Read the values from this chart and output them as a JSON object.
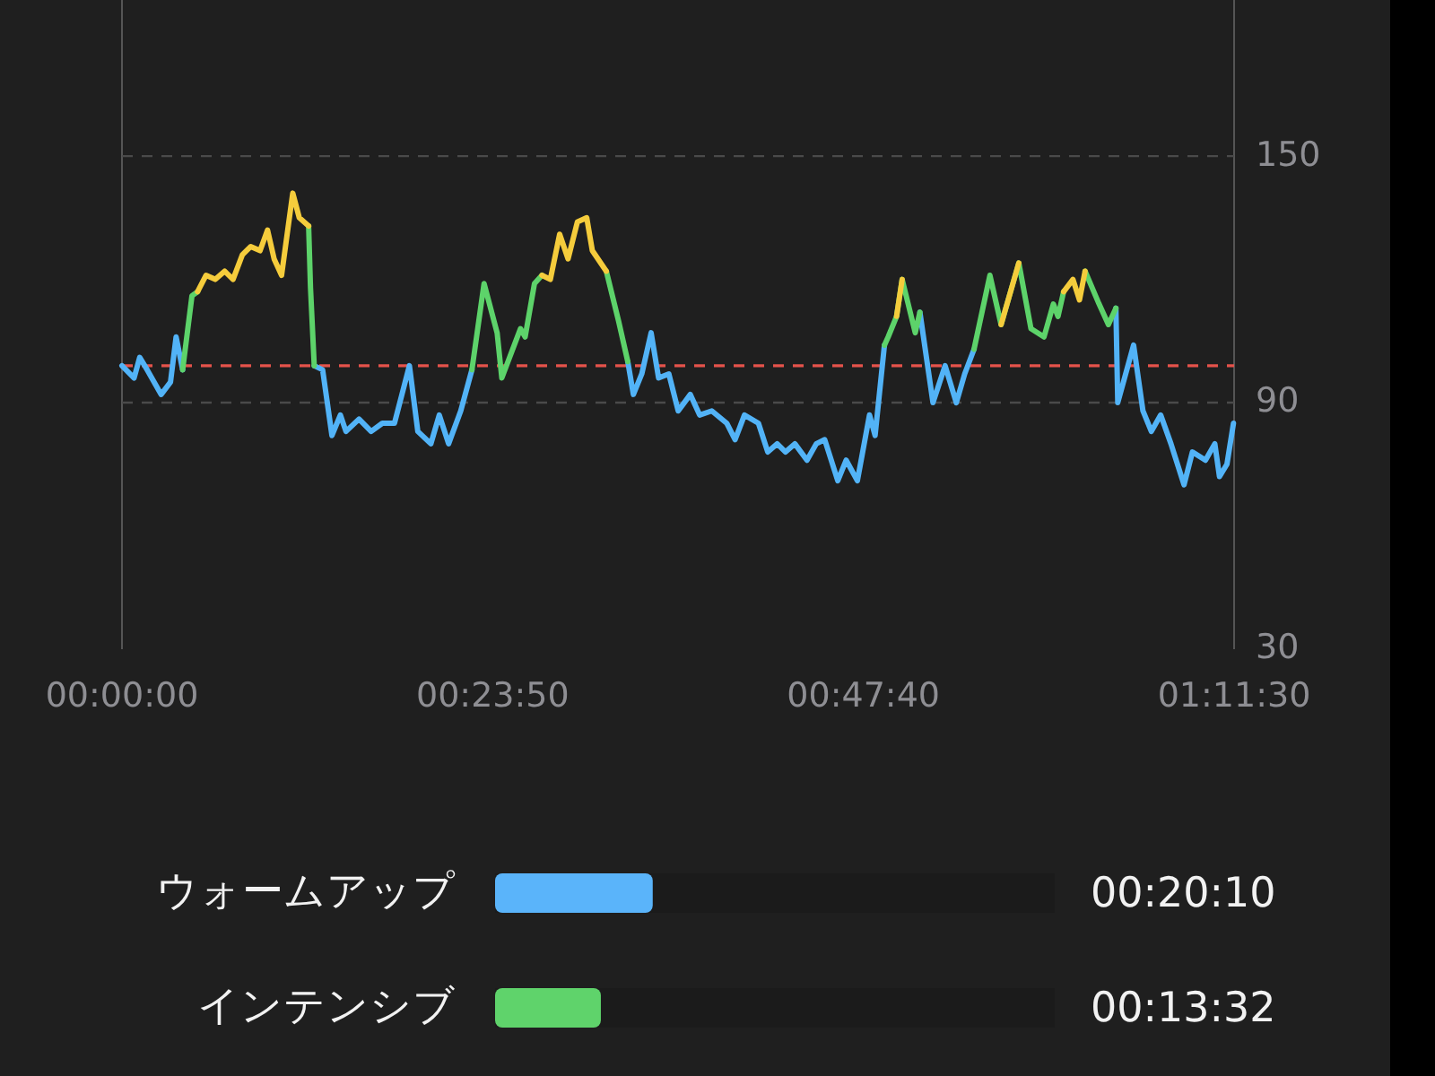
{
  "chart_data": [
    {
      "type": "line",
      "x": [
        0,
        0.013,
        0.019,
        0.027,
        0.042,
        0.052,
        0.058,
        0.065,
        0.075,
        0.081,
        0.09,
        0.1,
        0.11,
        0.119,
        0.129,
        0.138,
        0.148,
        0.156,
        0.163,
        0.171,
        0.177,
        0.183,
        0.19,
        0.2,
        0.202,
        0.206,
        0.215,
        0.225,
        0.234,
        0.24,
        0.254,
        0.267,
        0.279,
        0.292,
        0.308,
        0.317,
        0.331,
        0.34,
        0.35,
        0.363,
        0.375,
        0.388,
        0.402,
        0.407,
        0.427,
        0.432,
        0.442,
        0.45,
        0.459,
        0.469,
        0.478,
        0.488,
        0.498,
        0.504,
        0.519,
        0.532,
        0.542,
        0.548,
        0.557,
        0.567,
        0.575,
        0.586,
        0.596,
        0.609,
        0.619,
        0.632,
        0.648,
        0.657,
        0.667,
        0.682,
        0.692,
        0.702,
        0.711,
        0.721,
        0.734,
        0.744,
        0.753,
        0.767,
        0.776,
        0.788,
        0.801,
        0.807,
        0.817,
        0.821,
        0.83,
        0.836,
        0.85,
        0.855,
        0.869,
        0.882,
        0.894,
        0.903,
        0.913,
        0.93,
        0.942,
        0.961,
        0.974,
        0.988,
        0.998,
        1.003,
        1.009,
        1.019,
        1.026,
        1.032,
        1.047,
        1.057,
        1.065,
        1.067,
        1.084,
        1.094,
        1.103,
        1.113,
        1.124,
        1.138,
        1.147,
        1.161,
        1.171,
        1.176,
        1.184,
        1.191
      ],
      "series": [
        {
          "color": "#52b3f7",
          "values": [
            99,
            96,
            101,
            98,
            92,
            95,
            106,
            98,
            null,
            null,
            null,
            null,
            null,
            null,
            null,
            null,
            null,
            null,
            null,
            null,
            null,
            null,
            null,
            null,
            null,
            99,
            98,
            82,
            87,
            83,
            86,
            83,
            85,
            85,
            99,
            83,
            80,
            87,
            80,
            88,
            98,
            null,
            null,
            null,
            null,
            null,
            null,
            null,
            null,
            null,
            null,
            null,
            null,
            null,
            null,
            null,
            100,
            92,
            97,
            107,
            96,
            97,
            88,
            92,
            87,
            88,
            85,
            81,
            87,
            85,
            78,
            80,
            78,
            80,
            76,
            80,
            81,
            71,
            76,
            71,
            87,
            82,
            104,
            null,
            null,
            null,
            null,
            112,
            90,
            99,
            90,
            97,
            103,
            null,
            null,
            null,
            null,
            null,
            null,
            null,
            null,
            null,
            null,
            null,
            null,
            null,
            113,
            90,
            104,
            88,
            83,
            87,
            80,
            70,
            78,
            76,
            80,
            72,
            75,
            85
          ]
        },
        {
          "color": "#5dd36a",
          "values": [
            null,
            null,
            null,
            null,
            null,
            null,
            null,
            98,
            116,
            117,
            null,
            null,
            null,
            null,
            null,
            null,
            null,
            null,
            null,
            null,
            null,
            null,
            null,
            133,
            118,
            99,
            null,
            null,
            null,
            null,
            null,
            null,
            null,
            null,
            null,
            null,
            null,
            null,
            null,
            null,
            98,
            119,
            107,
            96,
            108,
            106,
            119,
            121,
            null,
            null,
            null,
            null,
            null,
            null,
            122,
            110,
            100,
            null,
            null,
            null,
            null,
            null,
            null,
            null,
            null,
            null,
            null,
            null,
            null,
            null,
            null,
            null,
            null,
            null,
            null,
            null,
            null,
            null,
            null,
            null,
            null,
            null,
            104,
            106,
            111,
            120,
            107,
            112,
            null,
            null,
            null,
            null,
            103,
            121,
            109,
            124,
            108,
            106,
            114,
            111,
            117,
            null,
            null,
            122,
            114,
            109,
            113,
            null,
            null,
            null,
            null,
            null,
            null,
            null,
            null,
            null,
            null,
            null,
            null,
            null
          ]
        },
        {
          "color": "#f5cc3c",
          "values": [
            null,
            null,
            null,
            null,
            null,
            null,
            null,
            null,
            null,
            117,
            121,
            120,
            122,
            120,
            126,
            128,
            127,
            132,
            125,
            121,
            131,
            141,
            135,
            133,
            null,
            null,
            null,
            null,
            null,
            null,
            null,
            null,
            null,
            null,
            null,
            null,
            null,
            null,
            null,
            null,
            null,
            null,
            null,
            null,
            null,
            null,
            null,
            121,
            120,
            131,
            125,
            134,
            135,
            127,
            122,
            null,
            null,
            null,
            null,
            null,
            null,
            null,
            null,
            null,
            null,
            null,
            null,
            null,
            null,
            null,
            null,
            null,
            null,
            null,
            null,
            null,
            null,
            null,
            null,
            null,
            null,
            null,
            null,
            null,
            111,
            120,
            null,
            null,
            null,
            null,
            null,
            null,
            null,
            null,
            109,
            124,
            null,
            null,
            null,
            null,
            117,
            120,
            115,
            122,
            null,
            null,
            null,
            null,
            null,
            null,
            null,
            null,
            null,
            null,
            null,
            null,
            null,
            null,
            null,
            null
          ]
        }
      ],
      "xlim": [
        0,
        1.19167
      ],
      "xticks": [
        {
          "value": 0,
          "label": "00:00:00"
        },
        {
          "value": 0.39722,
          "label": "00:23:50"
        },
        {
          "value": 0.79444,
          "label": "00:47:40"
        },
        {
          "value": 1.19167,
          "label": "01:11:30"
        }
      ],
      "ylim": [
        30,
        188
      ],
      "yticks": [
        30,
        90,
        150
      ],
      "grid": "y",
      "ref_lines": [
        {
          "axis": "y",
          "value": 99,
          "color": "#e5534b",
          "line_style": "dashed"
        }
      ]
    },
    {
      "type": "bar",
      "orientation": "horizontal",
      "categories": [
        "ウォームアップ",
        "インテンシブ"
      ],
      "values": [
        0.33611,
        0.22556
      ],
      "colors": [
        "#5ab4fa",
        "#5fd36b"
      ],
      "value_labels": [
        "00:20:10",
        "00:13:32"
      ]
    }
  ]
}
